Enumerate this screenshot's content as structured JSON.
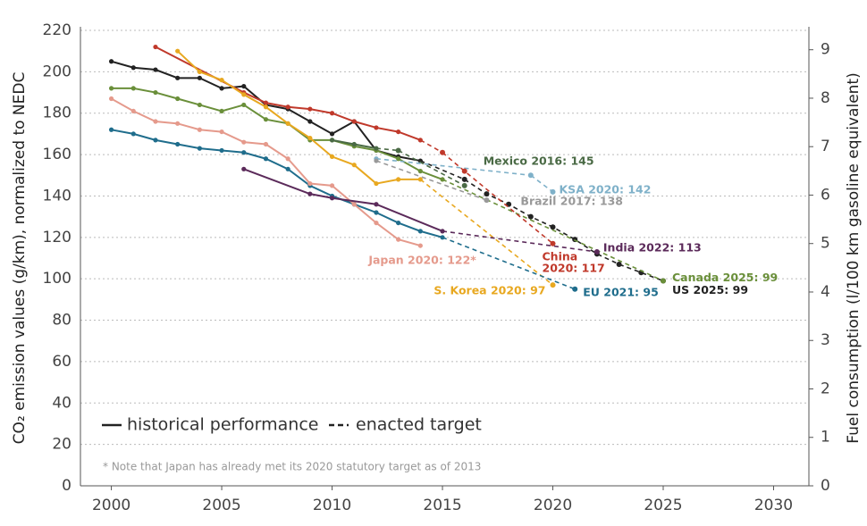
{
  "chart_data": {
    "type": "line",
    "ylabel": "CO₂ emission values (g/km), normalized to NEDC",
    "y2label": "Fuel consumption (l/100 km gasoline equivalent)",
    "xlim": [
      1998.6,
      2031.6
    ],
    "xticks": [
      2000,
      2005,
      2010,
      2015,
      2020,
      2025,
      2030
    ],
    "ylim": [
      0,
      220
    ],
    "yticks": [
      0,
      20,
      40,
      60,
      80,
      100,
      120,
      140,
      160,
      180,
      200,
      220
    ],
    "y2lim": [
      0,
      9.4
    ],
    "y2ticks": [
      0,
      1,
      2,
      3,
      4,
      5,
      6,
      7,
      8,
      9
    ],
    "grid": true,
    "legend": {
      "historical": "historical performance",
      "target": "enacted target"
    },
    "footnote": "* Note that Japan has already met its 2020 statutory target as of 2013",
    "series": [
      {
        "label": [
          "US 2025: 99"
        ],
        "color": "#222222",
        "x": [
          2000,
          2001,
          2002,
          2003,
          2004,
          2005,
          2006,
          2007,
          2008,
          2009,
          2010,
          2011,
          2012,
          2013,
          2014
        ],
        "values": [
          205,
          202,
          201,
          197,
          197,
          192,
          193,
          184,
          182,
          176,
          170,
          176,
          162,
          159,
          157
        ],
        "target_x": [
          2016,
          2017,
          2018,
          2019,
          2020,
          2021,
          2022,
          2023,
          2024,
          2025
        ],
        "target_values": [
          148,
          141,
          136,
          130,
          125,
          119,
          112,
          107,
          103,
          99
        ]
      },
      {
        "label": [
          "Canada 2025: 99"
        ],
        "color": "#6a8f3a",
        "x": [
          2000,
          2001,
          2002,
          2003,
          2004,
          2005,
          2006,
          2007,
          2008,
          2009,
          2010,
          2011,
          2012,
          2013,
          2014,
          2015
        ],
        "values": [
          192,
          192,
          190,
          187,
          184,
          181,
          184,
          177,
          175,
          167,
          167,
          164,
          162,
          158,
          152,
          148
        ],
        "target_x": [
          2025
        ],
        "target_values": [
          99
        ]
      },
      {
        "label": [
          "Mexico 2016: 145"
        ],
        "color": "#4a6a45",
        "x": [
          2010,
          2011,
          2012
        ],
        "values": [
          167,
          165,
          163
        ],
        "target_x": [
          2013,
          2016
        ],
        "target_values": [
          162,
          145
        ]
      },
      {
        "label": [
          "KSA 2020: 142"
        ],
        "color": "#7fb1c9",
        "x": [
          2012
        ],
        "values": [
          158
        ],
        "target_x": [
          2019,
          2020
        ],
        "target_values": [
          150,
          142
        ]
      },
      {
        "label": [
          "Brazil 2017: 138"
        ],
        "color": "#999999",
        "x": [
          2012
        ],
        "values": [
          157
        ],
        "target_x": [
          2017
        ],
        "target_values": [
          138
        ]
      },
      {
        "label": [
          "China",
          "2020: 117"
        ],
        "color": "#c0392b",
        "x": [
          2002,
          2006,
          2007,
          2008,
          2009,
          2010,
          2011,
          2012,
          2013,
          2014
        ],
        "values": [
          212,
          190,
          185,
          183,
          182,
          180,
          176,
          173,
          171,
          167
        ],
        "target_x": [
          2015,
          2016,
          2020
        ],
        "target_values": [
          161,
          152,
          117
        ]
      },
      {
        "label": [
          "S. Korea 2020: 97"
        ],
        "color": "#e8a820",
        "x": [
          2003,
          2004,
          2005,
          2006,
          2007,
          2008,
          2009,
          2010,
          2011,
          2012,
          2013,
          2014
        ],
        "values": [
          210,
          200,
          196,
          189,
          183,
          175,
          168,
          159,
          155,
          146,
          148,
          148
        ],
        "target_x": [
          2020
        ],
        "target_values": [
          97
        ]
      },
      {
        "label": [
          "EU 2021: 95"
        ],
        "color": "#1f6d8c",
        "x": [
          2000,
          2001,
          2002,
          2003,
          2004,
          2005,
          2006,
          2007,
          2008,
          2009,
          2010,
          2011,
          2012,
          2013,
          2014,
          2015
        ],
        "values": [
          172,
          170,
          167,
          165,
          163,
          162,
          161,
          158,
          153,
          145,
          140,
          136,
          132,
          127,
          123,
          120
        ],
        "target_x": [
          2021
        ],
        "target_values": [
          95
        ]
      },
      {
        "label": [
          "Japan 2020: 122*"
        ],
        "color": "#e59a8c",
        "x": [
          2000,
          2001,
          2002,
          2003,
          2004,
          2005,
          2006,
          2007,
          2008,
          2009,
          2010,
          2011,
          2012,
          2013,
          2014
        ],
        "values": [
          187,
          181,
          176,
          175,
          172,
          171,
          166,
          165,
          158,
          146,
          145,
          136,
          127,
          119,
          116
        ]
      },
      {
        "label": [
          "India 2022: 113"
        ],
        "color": "#5b2a5a",
        "x": [
          2006,
          2009,
          2010,
          2012,
          2015
        ],
        "values": [
          153,
          141,
          139,
          136,
          123
        ],
        "target_x": [
          2022
        ],
        "target_values": [
          113
        ]
      }
    ]
  }
}
